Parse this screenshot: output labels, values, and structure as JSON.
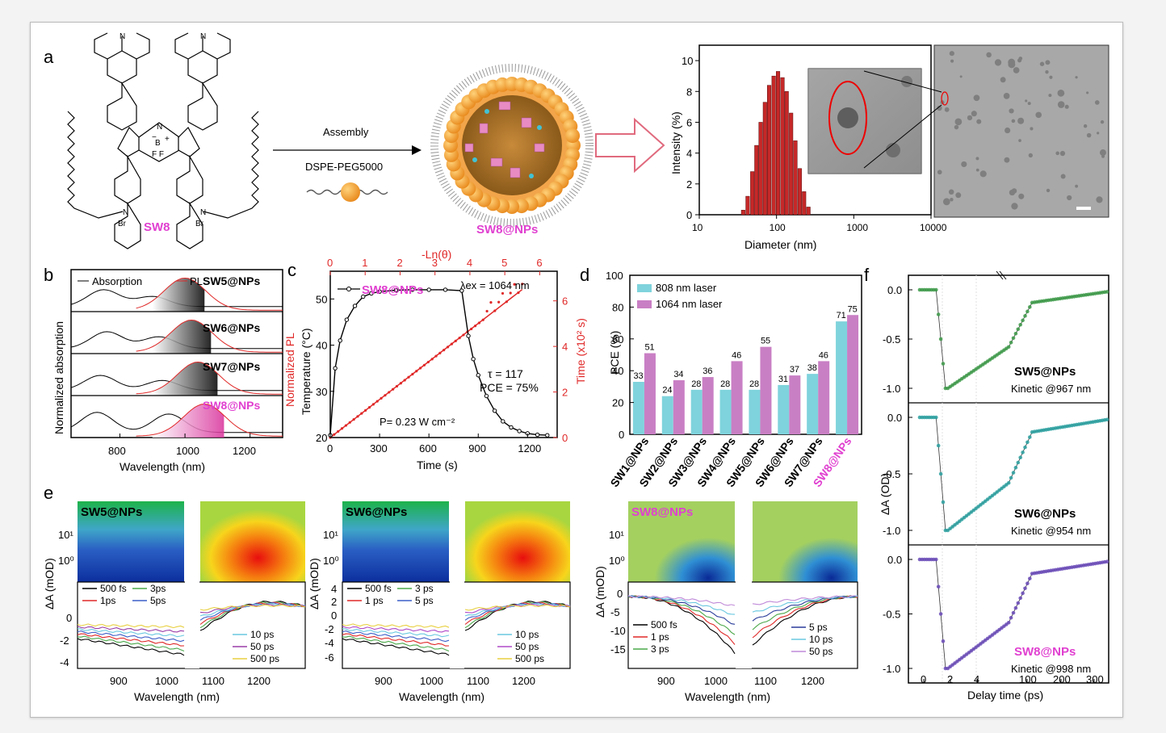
{
  "panels": {
    "a": {
      "letter": "a",
      "molecule_name": "SW8",
      "molecule_atoms": {
        "n_top": "N",
        "n_bridge": "N",
        "boron": "B",
        "f_pair": "F  F",
        "n_right_py": "N",
        "br": "Br",
        "plus": "+",
        "minus": "−"
      },
      "arrow_top_label": "Assembly",
      "arrow_bottom_label": "DSPE-PEG5000",
      "nanoparticle_name": "SW8@NPs",
      "dls": {
        "x_label": "Diameter (nm)",
        "y_label": "Intensity (%)",
        "x_ticks": [
          "10",
          "100",
          "1000",
          "10000"
        ],
        "y_ticks": [
          "0",
          "2",
          "4",
          "6",
          "8",
          "10"
        ]
      }
    },
    "b": {
      "letter": "b",
      "y_label_left": "Normalized absorption",
      "y_label_right": "Normalized PL",
      "x_label": "Wavelength (nm)",
      "x_ticks": [
        "800",
        "1000",
        "1200"
      ],
      "legend": [
        "Absorption",
        "PL"
      ],
      "samples": [
        "SW5@NPs",
        "SW6@NPs",
        "SW7@NPs",
        "SW8@NPs"
      ]
    },
    "c": {
      "letter": "c",
      "x_label": "Time (s)",
      "y_label_left": "Temperature (°C)",
      "y_label_right": "Time (x10² s)",
      "top_label": "-Ln(θ)",
      "x_ticks": [
        "0",
        "300",
        "600",
        "900",
        "1200"
      ],
      "y_ticks_left": [
        "20",
        "30",
        "40",
        "50"
      ],
      "y_ticks_right": [
        "0",
        "2",
        "4",
        "6"
      ],
      "top_ticks": [
        "0",
        "1",
        "2",
        "3",
        "4",
        "5",
        "6"
      ],
      "legend": "SW8@NPs",
      "lambda_label": "λex = 1064 nm",
      "tau_label": "τ = 117",
      "pce_label": "PCE = 75%",
      "power_label": "P= 0.23 W cm⁻²"
    },
    "d": {
      "letter": "d",
      "y_label": "PCE (%)",
      "y_ticks": [
        "0",
        "20",
        "40",
        "60",
        "80",
        "100"
      ],
      "legend": [
        "808 nm laser",
        "1064 nm laser"
      ]
    },
    "e": {
      "letter": "e",
      "y_label": "ΔA (mOD)",
      "x_label": "Wavelength (nm)",
      "x_ticks": [
        "900",
        "1000",
        "1100",
        "1200"
      ],
      "heat_ticks": [
        "10¹",
        "10⁰"
      ],
      "sub1": {
        "name": "SW5@NPs",
        "legend_left": [
          "500 fs",
          "3ps",
          "1ps",
          "5ps"
        ],
        "legend_right": [
          "10 ps",
          "50 ps",
          "500  ps"
        ],
        "y_ticks": [
          "0",
          "-2",
          "-4"
        ]
      },
      "sub2": {
        "name": "SW6@NPs",
        "legend_left": [
          "500 fs",
          "3 ps",
          "1 ps",
          "5 ps"
        ],
        "legend_right": [
          "10 ps",
          "50 ps",
          "500 ps"
        ],
        "y_ticks": [
          "4",
          "2",
          "0",
          "-2",
          "-4",
          "-6"
        ]
      },
      "sub3": {
        "name": "SW8@NPs",
        "legend_left": [
          "500 fs",
          "1 ps",
          "3 ps"
        ],
        "legend_right": [
          "5 ps",
          "10 ps",
          "50 ps"
        ],
        "y_ticks": [
          "0",
          "-5",
          "-10",
          "-15"
        ]
      }
    },
    "f": {
      "letter": "f",
      "y_label": "ΔA (OD)",
      "x_label": "Delay time (ps)",
      "x_ticks": [
        "0",
        "2",
        "4",
        "100",
        "200",
        "300"
      ],
      "y_ticks": [
        "0.0",
        "-0.5",
        "-1.0"
      ],
      "rows": [
        {
          "name": "SW5@NPs",
          "kinetic": "Kinetic @967 nm"
        },
        {
          "name": "SW6@NPs",
          "kinetic": "Kinetic @954 nm"
        },
        {
          "name": "SW8@NPs",
          "kinetic": "Kinetic @998 nm"
        }
      ]
    }
  },
  "chart_data": [
    {
      "type": "bar",
      "panel": "a",
      "title": "",
      "xlabel": "Diameter (nm)",
      "ylabel": "Intensity (%)",
      "x_scale": "log",
      "xlim": [
        10,
        10000
      ],
      "ylim": [
        0,
        11
      ],
      "x": [
        35,
        40,
        46,
        52,
        59,
        67,
        76,
        87,
        99,
        113,
        128,
        146,
        166,
        189,
        215,
        245
      ],
      "values": [
        0.3,
        1.2,
        2.8,
        4.5,
        6.0,
        7.3,
        8.4,
        9.0,
        9.3,
        8.9,
        8.0,
        6.6,
        4.8,
        3.0,
        1.5,
        0.5
      ],
      "colors": {
        "bar": "#c62828"
      }
    },
    {
      "type": "bar",
      "panel": "d",
      "title": "",
      "ylabel": "PCE (%)",
      "ylim": [
        0,
        100
      ],
      "legend_placement": "top-left",
      "categories": [
        "SW1@NPs",
        "SW2@NPs",
        "SW3@NPs",
        "SW4@NPs",
        "SW5@NPs",
        "SW6@NPs",
        "SW7@NPs",
        "SW8@NPs"
      ],
      "series": [
        {
          "name": "808 nm laser",
          "values": [
            33,
            24,
            28,
            28,
            28,
            31,
            38,
            71
          ],
          "color": "#7fd3dc"
        },
        {
          "name": "1064 nm laser",
          "values": [
            51,
            34,
            36,
            46,
            55,
            37,
            46,
            75
          ],
          "color": "#c97fc4"
        }
      ],
      "colors": {
        "highlight_label": "#e040d0"
      }
    },
    {
      "type": "line",
      "panel": "c",
      "title": "",
      "xlabel": "Time (s)",
      "ylabel": "Temperature (°C)",
      "xlim": [
        0,
        1380
      ],
      "ylim": [
        20,
        56
      ],
      "series": [
        {
          "name": "SW8@NPs",
          "x": [
            0,
            30,
            60,
            100,
            150,
            200,
            250,
            300,
            400,
            500,
            600,
            700,
            800,
            840,
            870,
            900,
            950,
            1000,
            1050,
            1100,
            1150,
            1200,
            1260,
            1320
          ],
          "values": [
            20.5,
            35,
            41,
            45.5,
            48.5,
            50.5,
            51.2,
            51.6,
            51.9,
            52.0,
            52.0,
            52.0,
            51.8,
            42,
            37,
            33.5,
            29,
            25.8,
            23.5,
            22.2,
            21.4,
            20.9,
            20.6,
            20.5
          ]
        }
      ],
      "secondary": {
        "top_axis": "-Ln(θ)",
        "right_axis": "Time (x10² s)",
        "top_xlim": [
          0,
          6.5
        ],
        "right_ylim": [
          0,
          7.3
        ],
        "fit_x": [
          0,
          5.5
        ],
        "fit_y": [
          0,
          6.5
        ]
      }
    }
  ]
}
